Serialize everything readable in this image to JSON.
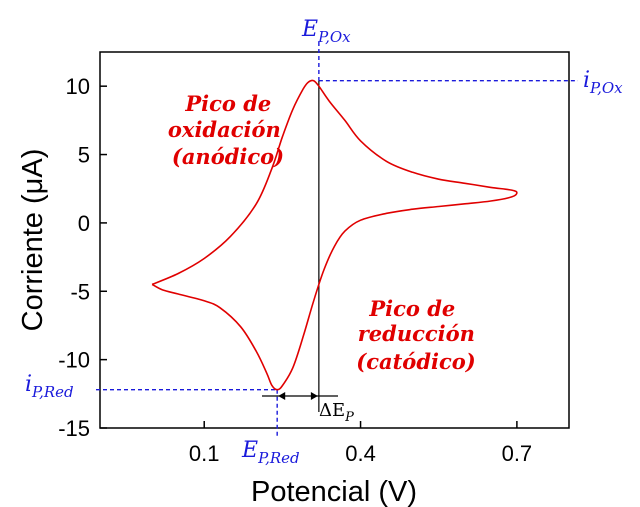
{
  "chart_data": {
    "type": "line",
    "xlabel": "Potencial (V)",
    "ylabel": "Corriente (μA)",
    "xlim": [
      -0.1,
      0.8
    ],
    "ylim": [
      -15,
      12.5
    ],
    "xticks": [
      0.1,
      0.4,
      0.7
    ],
    "xtick_labels": [
      "0.1",
      "0.4",
      "0.7"
    ],
    "yticks": [
      10,
      5,
      0,
      -5,
      -10,
      -15
    ],
    "ytick_labels": [
      "10",
      "5",
      "0",
      "-5",
      "-10",
      "-15"
    ],
    "grid": false,
    "color": "#e00000",
    "series": [
      {
        "x": [
          0.0,
          0.05,
          0.1,
          0.15,
          0.2,
          0.23,
          0.25,
          0.27,
          0.29,
          0.3,
          0.31,
          0.32,
          0.34,
          0.37,
          0.4,
          0.45,
          0.5,
          0.55,
          0.6,
          0.65,
          0.69,
          0.7,
          0.69,
          0.65,
          0.6,
          0.55,
          0.5,
          0.45,
          0.4,
          0.37,
          0.35,
          0.33,
          0.31,
          0.29,
          0.27,
          0.25,
          0.24,
          0.23,
          0.22,
          0.2,
          0.17,
          0.13,
          0.1,
          0.05,
          0.02,
          0.0
        ],
        "y": [
          -4.5,
          -3.7,
          -2.6,
          -1.0,
          1.4,
          4.0,
          6.3,
          8.3,
          9.8,
          10.3,
          10.4,
          10.0,
          8.9,
          7.5,
          6.0,
          4.5,
          3.7,
          3.2,
          2.9,
          2.6,
          2.4,
          2.2,
          1.9,
          1.6,
          1.4,
          1.2,
          1.0,
          0.7,
          0.2,
          -0.6,
          -1.7,
          -3.4,
          -5.7,
          -8.3,
          -10.6,
          -11.9,
          -12.2,
          -11.9,
          -11.0,
          -9.4,
          -7.6,
          -6.2,
          -5.7,
          -5.2,
          -4.9,
          -4.5
        ]
      }
    ],
    "annotations": {
      "oxidation": [
        "Pico de",
        "oxidación",
        "(anódico)"
      ],
      "reduction": [
        "Pico de",
        "reducción",
        "(catódico)"
      ],
      "e_ox": {
        "main": "E",
        "sub": "P,Ox"
      },
      "e_red": {
        "main": "E",
        "sub": "P,Red"
      },
      "i_ox": {
        "main": "i",
        "sub": "P,Ox"
      },
      "i_red": {
        "main": "i",
        "sub": "P,Red"
      },
      "delta_e": {
        "main": "ΔE",
        "sub": "P"
      },
      "e_ox_x": 0.32,
      "e_red_x": 0.24,
      "i_ox_y": 10.4,
      "i_red_y": -12.2
    }
  }
}
